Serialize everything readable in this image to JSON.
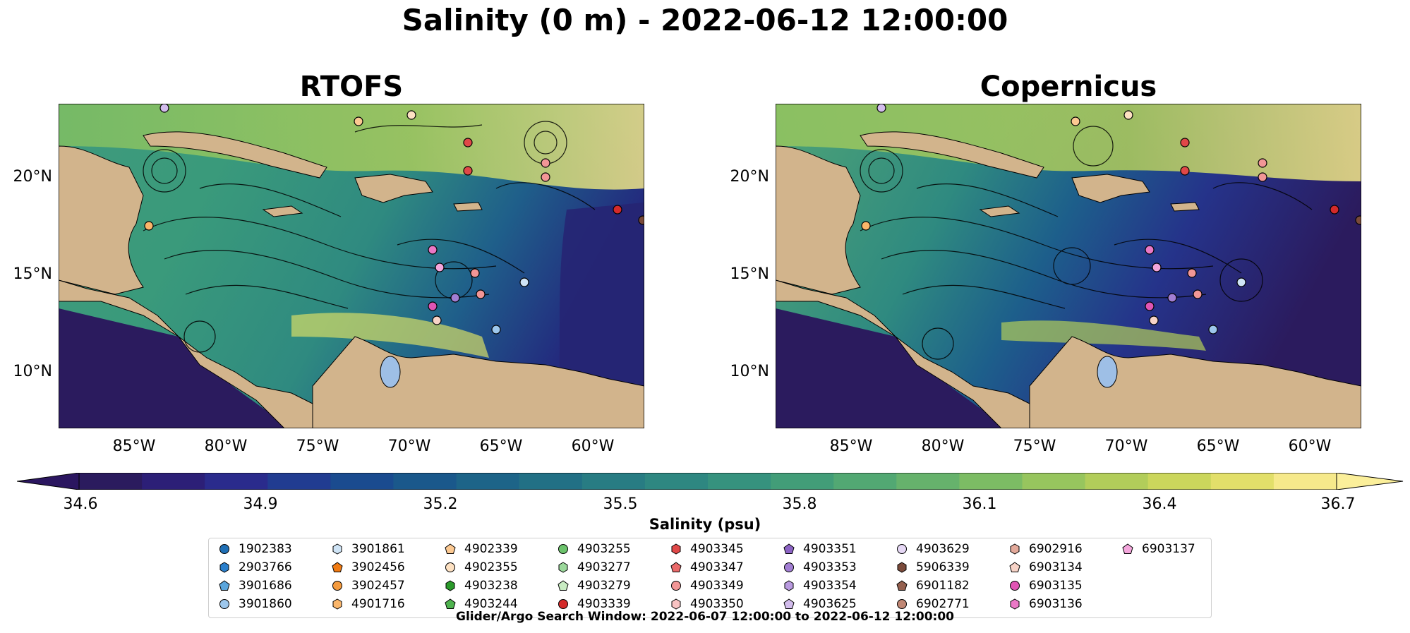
{
  "title": "Salinity (0 m) - 2022-06-12 12:00:00",
  "panels": [
    {
      "title": "RTOFS"
    },
    {
      "title": "Copernicus"
    }
  ],
  "axes": {
    "lat_labels": [
      "20°N",
      "15°N",
      "10°N"
    ],
    "lon_labels": [
      "85°W",
      "80°W",
      "75°W",
      "70°W",
      "65°W",
      "60°W"
    ]
  },
  "colorbar": {
    "label": "Salinity (psu)",
    "ticks": [
      "34.6",
      "34.9",
      "35.2",
      "35.5",
      "35.8",
      "36.1",
      "36.4",
      "36.7"
    ],
    "colors": [
      "#2b1b5e",
      "#2c1f77",
      "#2a2b8c",
      "#213c91",
      "#1a4b8f",
      "#1a588b",
      "#1d6488",
      "#227085",
      "#287c83",
      "#2e8781",
      "#36927e",
      "#429d78",
      "#52a873",
      "#66b26c",
      "#7cbc64",
      "#97c55e",
      "#b2cd5a",
      "#cbd65c",
      "#e2df6a",
      "#f6e98b"
    ],
    "extend_colors": [
      "#2b1660",
      "#fbef9a"
    ]
  },
  "legend": {
    "items": [
      {
        "id": "1902383",
        "marker": "circle",
        "color": "#1f6fb5"
      },
      {
        "id": "2903766",
        "marker": "hexagon",
        "color": "#2a7fcc"
      },
      {
        "id": "3901686",
        "marker": "pentagon",
        "color": "#5aa5dc"
      },
      {
        "id": "3901860",
        "marker": "circle",
        "color": "#9dc7ec"
      },
      {
        "id": "3901861",
        "marker": "hexagon",
        "color": "#cfe4f6"
      },
      {
        "id": "3902456",
        "marker": "pentagon",
        "color": "#f07a12"
      },
      {
        "id": "3902457",
        "marker": "circle",
        "color": "#f59b3e"
      },
      {
        "id": "4901716",
        "marker": "hexagon",
        "color": "#fbb66a"
      },
      {
        "id": "4902339",
        "marker": "pentagon",
        "color": "#fcc992"
      },
      {
        "id": "4902355",
        "marker": "circle",
        "color": "#fde1c2"
      },
      {
        "id": "4903238",
        "marker": "hexagon",
        "color": "#2b9a2b"
      },
      {
        "id": "4903244",
        "marker": "pentagon",
        "color": "#4fb34f"
      },
      {
        "id": "4903255",
        "marker": "circle",
        "color": "#6cc36c"
      },
      {
        "id": "4903277",
        "marker": "hexagon",
        "color": "#9bd89b"
      },
      {
        "id": "4903279",
        "marker": "pentagon",
        "color": "#c9ecc3"
      },
      {
        "id": "4903339",
        "marker": "circle",
        "color": "#d42a2a"
      },
      {
        "id": "4903345",
        "marker": "hexagon",
        "color": "#e04848"
      },
      {
        "id": "4903347",
        "marker": "pentagon",
        "color": "#ea6a6a"
      },
      {
        "id": "4903349",
        "marker": "circle",
        "color": "#f29696"
      },
      {
        "id": "4903350",
        "marker": "hexagon",
        "color": "#f9c3c3"
      },
      {
        "id": "4903351",
        "marker": "pentagon",
        "color": "#8c63c4"
      },
      {
        "id": "4903353",
        "marker": "circle",
        "color": "#a27ed3"
      },
      {
        "id": "4903354",
        "marker": "hexagon",
        "color": "#b99ae0"
      },
      {
        "id": "4903625",
        "marker": "pentagon",
        "color": "#d2bcec"
      },
      {
        "id": "4903629",
        "marker": "circle",
        "color": "#e6d8f5"
      },
      {
        "id": "5906339",
        "marker": "hexagon",
        "color": "#7a4a3a"
      },
      {
        "id": "6901182",
        "marker": "pentagon",
        "color": "#94604f"
      },
      {
        "id": "6902771",
        "marker": "circle",
        "color": "#c08774"
      },
      {
        "id": "6902916",
        "marker": "hexagon",
        "color": "#e3a99a"
      },
      {
        "id": "6903134",
        "marker": "pentagon",
        "color": "#f7d3c7"
      },
      {
        "id": "6903135",
        "marker": "circle",
        "color": "#e055b4"
      },
      {
        "id": "6903136",
        "marker": "hexagon",
        "color": "#ea78c6"
      },
      {
        "id": "6903137",
        "marker": "pentagon",
        "color": "#f4a6dc"
      }
    ]
  },
  "footer": "Glider/Argo Search Window: 2022-06-07 12:00:00 to 2022-06-12 12:00:00",
  "map_colors": {
    "land": "#d2b48c",
    "lake": "#9ebfe6",
    "river": "#a9b6c8"
  }
}
